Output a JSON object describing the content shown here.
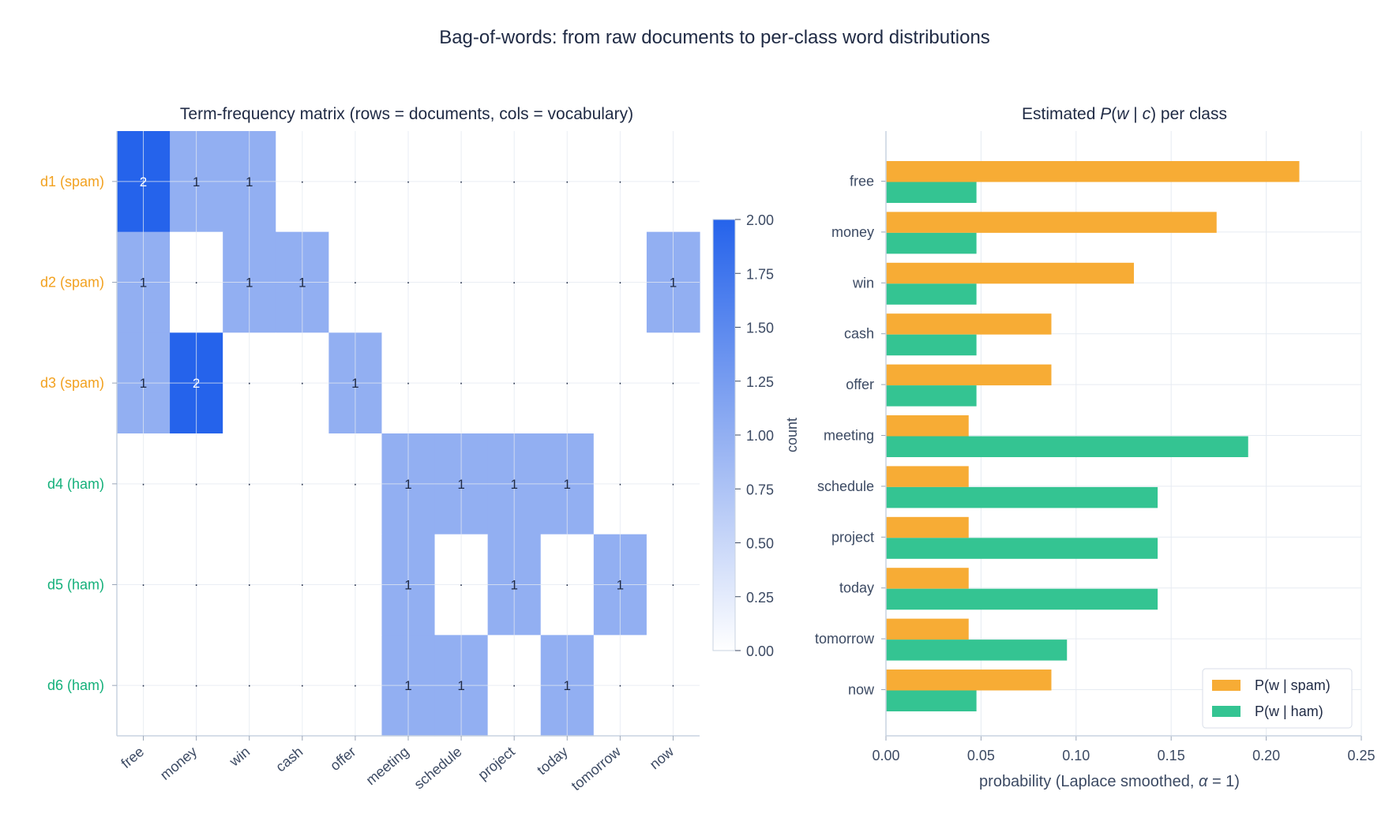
{
  "figure_title": "Bag-of-words: from raw documents to per-class word distributions",
  "chart_data": [
    {
      "type": "heatmap",
      "title": "Term-frequency matrix  (rows = documents, cols = vocabulary)",
      "rows": [
        "d1  (spam)",
        "d2  (spam)",
        "d3  (spam)",
        "d4  (ham)",
        "d5  (ham)",
        "d6  (ham)"
      ],
      "row_classes": [
        "spam",
        "spam",
        "spam",
        "ham",
        "ham",
        "ham"
      ],
      "columns": [
        "free",
        "money",
        "win",
        "cash",
        "offer",
        "meeting",
        "schedule",
        "project",
        "today",
        "tomorrow",
        "now"
      ],
      "values": [
        [
          2,
          1,
          1,
          0,
          0,
          0,
          0,
          0,
          0,
          0,
          0
        ],
        [
          1,
          0,
          1,
          1,
          0,
          0,
          0,
          0,
          0,
          0,
          1
        ],
        [
          1,
          2,
          0,
          0,
          1,
          0,
          0,
          0,
          0,
          0,
          0
        ],
        [
          0,
          0,
          0,
          0,
          0,
          1,
          1,
          1,
          1,
          0,
          0
        ],
        [
          0,
          0,
          0,
          0,
          0,
          1,
          0,
          1,
          0,
          1,
          0
        ],
        [
          0,
          0,
          0,
          0,
          0,
          1,
          1,
          0,
          1,
          0,
          0
        ]
      ],
      "zero_marker": "·",
      "colorbar": {
        "label": "count",
        "range": [
          0,
          2
        ],
        "ticks": [
          "0.00",
          "0.25",
          "0.50",
          "0.75",
          "1.00",
          "1.25",
          "1.50",
          "1.75",
          "2.00"
        ]
      },
      "grid": true
    },
    {
      "type": "bar",
      "orientation": "horizontal",
      "title_prefix": "Estimated ",
      "title_math_P": "P",
      "title_math_open": "(",
      "title_math_w": "w",
      "title_math_bar": " | ",
      "title_math_c": "c",
      "title_math_close": ")",
      "title_suffix": " per class",
      "categories": [
        "free",
        "money",
        "win",
        "cash",
        "offer",
        "meeting",
        "schedule",
        "project",
        "today",
        "tomorrow",
        "now"
      ],
      "series": [
        {
          "name": "P(w | spam)",
          "class": "spam",
          "values": [
            0.2174,
            0.1739,
            0.1304,
            0.087,
            0.087,
            0.0435,
            0.0435,
            0.0435,
            0.0435,
            0.0435,
            0.087
          ]
        },
        {
          "name": "P(w | ham)",
          "class": "ham",
          "values": [
            0.0476,
            0.0476,
            0.0476,
            0.0476,
            0.0476,
            0.1905,
            0.1429,
            0.1429,
            0.1429,
            0.0952,
            0.0476
          ]
        }
      ],
      "xlabel_prefix": "probability  (Laplace smoothed, ",
      "xlabel_alpha": "α",
      "xlabel_suffix": " = 1)",
      "xlim": [
        0,
        0.25
      ],
      "xticks": [
        "0.00",
        "0.05",
        "0.10",
        "0.15",
        "0.20",
        "0.25"
      ],
      "legend_placement": "lower-right",
      "grid": true
    }
  ],
  "colors": {
    "spam": "#f2a11f",
    "ham": "#14b07a",
    "bar_spam": "#f7ac35",
    "bar_ham": "#34c492",
    "heat_low": "#ffffff",
    "heat_high": "#2563eb",
    "text": "#1f2a44",
    "axis_text": "#3c4a63"
  }
}
